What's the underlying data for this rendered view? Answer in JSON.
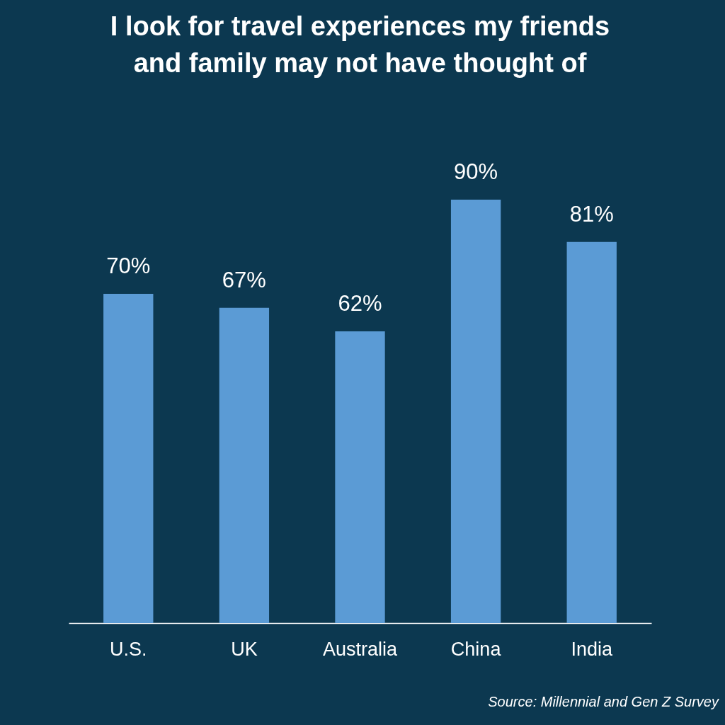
{
  "chart_data": {
    "type": "bar",
    "title": "I look for travel experiences my friends\nand family may not have thought of",
    "categories": [
      "U.S.",
      "UK",
      "Australia",
      "China",
      "India"
    ],
    "values": [
      70,
      67,
      62,
      90,
      81
    ],
    "color": "#5b9bd5",
    "value_labels": [
      "70%",
      "67%",
      "62%",
      "90%",
      "81%"
    ],
    "annotations": [
      "Source: Millennial and Gen Z Survey"
    ]
  }
}
